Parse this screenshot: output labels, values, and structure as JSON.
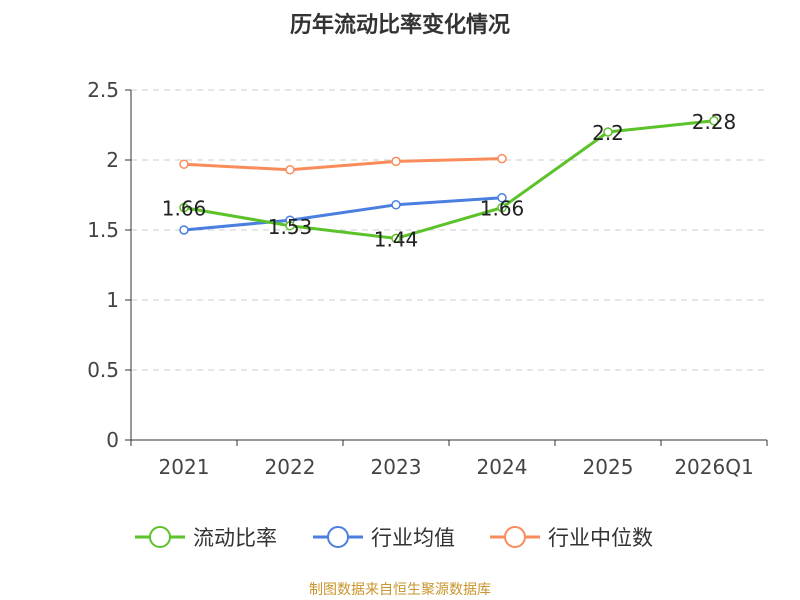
{
  "chart_data": {
    "type": "line",
    "title": "历年流动比率变化情况",
    "categories": [
      "2021",
      "2022",
      "2023",
      "2024",
      "2025",
      "2026Q1"
    ],
    "ylim": [
      0,
      2.5
    ],
    "yticks": [
      "0",
      "0.5",
      "1",
      "1.5",
      "2",
      "2.5"
    ],
    "grid": true,
    "legend_position": "bottom",
    "series": [
      {
        "name": "流动比率",
        "color": "#5cc22a",
        "values": [
          1.66,
          1.53,
          1.44,
          1.66,
          2.2,
          2.28
        ],
        "labels": [
          "1.66",
          "1.53",
          "1.44",
          "1.66",
          "2.2",
          "2.28"
        ]
      },
      {
        "name": "行业均值",
        "color": "#4a7fe0",
        "values": [
          1.5,
          1.57,
          1.68,
          1.73,
          null,
          null
        ]
      },
      {
        "name": "行业中位数",
        "color": "#f98c5a",
        "values": [
          1.97,
          1.93,
          1.99,
          2.01,
          null,
          null
        ]
      }
    ]
  },
  "source": "制图数据来自恒生聚源数据库"
}
